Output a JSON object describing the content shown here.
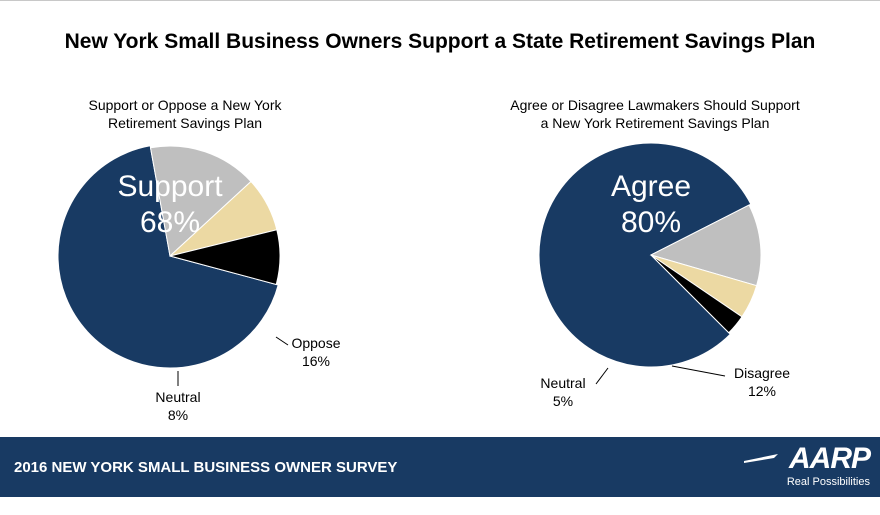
{
  "title": "New York Small Business Owners Support a State Retirement Savings Plan",
  "footer": {
    "survey": "2016 NEW YORK SMALL BUSINESS OWNER SURVEY",
    "logo_text": "AARP",
    "logo_tagline": "Real Possibilities"
  },
  "colors": {
    "navy": "#183a63",
    "gray": "#bfbfbf",
    "tan": "#ecd9a3",
    "black": "#000000",
    "footer_bg": "#183a63"
  },
  "chart_data": [
    {
      "type": "pie",
      "title_lines": [
        "Support or Oppose a New York",
        "Retirement Savings Plan"
      ],
      "slices": [
        {
          "label": "Support",
          "value": 68,
          "display": "68%",
          "color": "#183a63"
        },
        {
          "label": "Oppose",
          "value": 16,
          "display": "16%",
          "color": "#bfbfbf"
        },
        {
          "label": "Neutral",
          "value": 8,
          "display": "8%",
          "color": "#ecd9a3"
        },
        {
          "label": "",
          "value": 8,
          "display": "",
          "color": "#000000"
        }
      ]
    },
    {
      "type": "pie",
      "title_lines": [
        "Agree or Disagree Lawmakers Should Support",
        "a New York Retirement Savings Plan"
      ],
      "slices": [
        {
          "label": "Agree",
          "value": 80,
          "display": "80%",
          "color": "#183a63"
        },
        {
          "label": "Disagree",
          "value": 12,
          "display": "12%",
          "color": "#bfbfbf"
        },
        {
          "label": "Neutral",
          "value": 5,
          "display": "5%",
          "color": "#ecd9a3"
        },
        {
          "label": "",
          "value": 3,
          "display": "",
          "color": "#000000"
        }
      ]
    }
  ]
}
